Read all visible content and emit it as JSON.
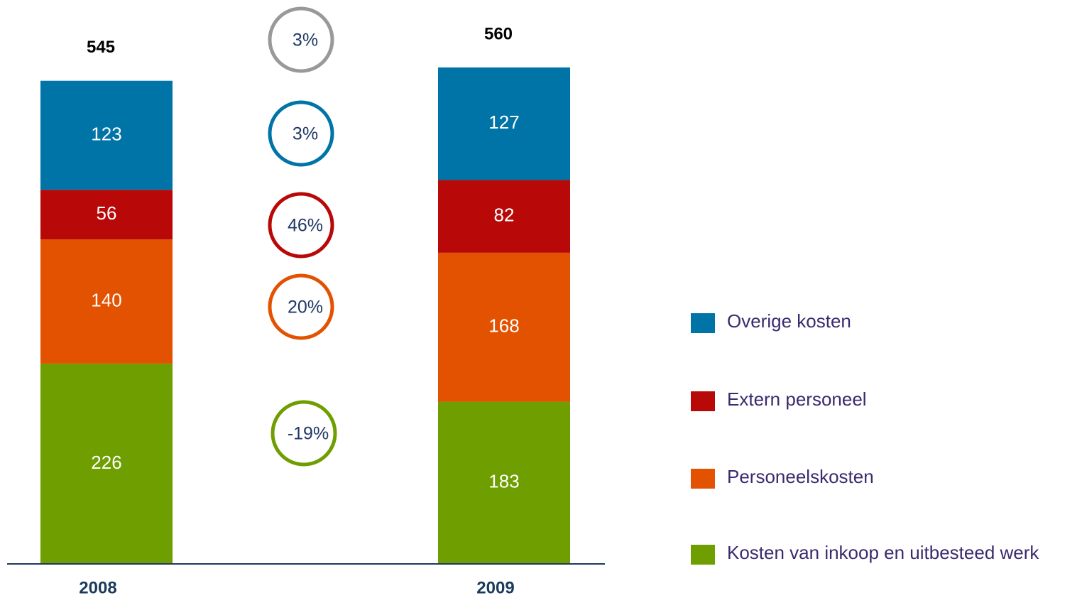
{
  "chart_data": {
    "type": "stacked_bar",
    "categories": [
      "2008",
      "2009"
    ],
    "series": [
      {
        "name": "Kosten van inkoop en uitbesteed werk",
        "color": "#6e9e00",
        "values": [
          226,
          183
        ]
      },
      {
        "name": "Personeelskosten",
        "color": "#e35200",
        "values": [
          140,
          168
        ]
      },
      {
        "name": "Extern personeel",
        "color": "#b80808",
        "values": [
          56,
          82
        ]
      },
      {
        "name": "Overige kosten",
        "color": "#0074a6",
        "values": [
          123,
          127
        ]
      }
    ],
    "totals": [
      545,
      560
    ],
    "changes": [
      3,
      3,
      46,
      20,
      -19
    ],
    "change_labels": [
      "3%",
      "3%",
      "46%",
      "20%",
      "-19%"
    ],
    "total_change_color": "#999999"
  }
}
